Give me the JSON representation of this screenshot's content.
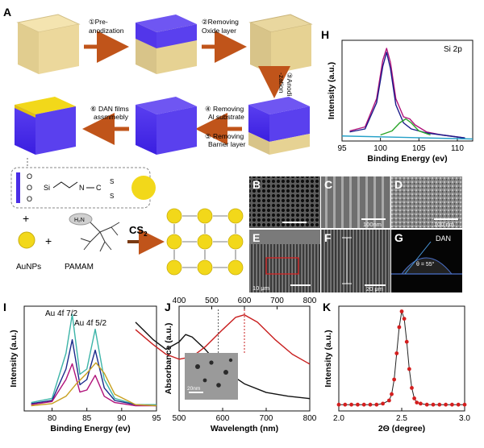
{
  "panel_labels": {
    "A": "A",
    "H": "H",
    "B": "B",
    "C": "C",
    "D": "D",
    "E": "E",
    "F": "F",
    "G": "G",
    "I": "I",
    "J": "J",
    "K": "K"
  },
  "schematic": {
    "steps": [
      "①Pre-",
      "anodization",
      "②Removing",
      "Oxide layer",
      "③Anodi",
      "-zation",
      "④ Removing",
      "Al substrate",
      "⑤ Removing",
      "Barrier layer",
      "⑥ DAN films",
      "assmmebly"
    ],
    "molecule_atoms": [
      "O",
      "O",
      "O",
      "Si",
      "N",
      "C",
      "S",
      "S"
    ],
    "plus": "+",
    "reagent_label_1": "AuNPs",
    "reagent_label_2": "PAMAM",
    "amine_label": "H₂N",
    "cs2_label": "CS",
    "cs2_sub": "2"
  },
  "micrographs": {
    "C_scale": "100nm",
    "D_scale": "100 nm",
    "E_scale": "10 μm",
    "F_scale": "20 μm",
    "G_title": "DAN",
    "G_angle": "θ = 55°",
    "J_inset_scale": "20nm"
  },
  "chart_data": [
    {
      "id": "H",
      "type": "line",
      "annotation": "Si 2p",
      "xlabel": "Binding Energy (ev)",
      "ylabel": "Intensity (a.u.)",
      "xlim": [
        95,
        112
      ],
      "x_ticks": [
        "95",
        "100",
        "105",
        "110"
      ],
      "series": [
        {
          "color": "#b0127a",
          "x": [
            96,
            98,
            99.5,
            100.3,
            100.8,
            101.3,
            102,
            103,
            103.8,
            104.5,
            106,
            108,
            111
          ],
          "y": [
            0.1,
            0.14,
            0.42,
            0.8,
            0.92,
            0.78,
            0.42,
            0.24,
            0.22,
            0.16,
            0.09,
            0.06,
            0.03
          ]
        },
        {
          "color": "#1a1a8a",
          "x": [
            96,
            98,
            99.5,
            100.3,
            100.8,
            101.3,
            102,
            103,
            104,
            106,
            111
          ],
          "y": [
            0.09,
            0.12,
            0.38,
            0.74,
            0.88,
            0.72,
            0.36,
            0.18,
            0.12,
            0.08,
            0.03
          ]
        },
        {
          "color": "#2aa52a",
          "x": [
            100,
            101.5,
            102.5,
            103.3,
            104,
            105,
            106.5
          ],
          "y": [
            0.06,
            0.1,
            0.18,
            0.22,
            0.18,
            0.1,
            0.06
          ]
        },
        {
          "color": "#24a0c8",
          "x": [
            95,
            112
          ],
          "y": [
            0.05,
            0.02
          ]
        }
      ]
    },
    {
      "id": "I",
      "type": "line",
      "xlabel": "Binding Energy (ev)",
      "ylabel": "Intensity (a.u.)",
      "xlim": [
        76,
        95
      ],
      "x_ticks": [
        "80",
        "85",
        "90",
        "95"
      ],
      "annotations": [
        "Au 4f 7/2",
        "Au 4f 5/2"
      ],
      "series": [
        {
          "color": "#3cb4a8",
          "x": [
            77,
            80,
            82,
            82.9,
            84,
            85,
            86.2,
            87.5,
            89,
            92,
            95
          ],
          "y": [
            0.08,
            0.12,
            0.55,
            0.92,
            0.35,
            0.4,
            0.78,
            0.3,
            0.12,
            0.06,
            0.06
          ]
        },
        {
          "color": "#1a2a8a",
          "x": [
            77,
            80,
            82,
            82.9,
            84,
            85,
            86.2,
            87.5,
            89,
            92,
            95
          ],
          "y": [
            0.07,
            0.1,
            0.4,
            0.68,
            0.25,
            0.3,
            0.58,
            0.22,
            0.1,
            0.06,
            0.05
          ]
        },
        {
          "color": "#b0127a",
          "x": [
            77,
            80,
            82,
            82.9,
            84,
            85,
            86.2,
            87.5,
            89,
            92,
            95
          ],
          "y": [
            0.06,
            0.09,
            0.3,
            0.45,
            0.18,
            0.2,
            0.34,
            0.14,
            0.08,
            0.05,
            0.05
          ]
        },
        {
          "color": "#c8a020",
          "x": [
            77,
            80,
            82,
            83.5,
            85,
            86.3,
            87.5,
            89,
            92,
            95
          ],
          "y": [
            0.05,
            0.07,
            0.14,
            0.26,
            0.36,
            0.46,
            0.36,
            0.16,
            0.06,
            0.05
          ]
        }
      ]
    },
    {
      "id": "J",
      "type": "line",
      "xlabel": "Wavelength (nm)",
      "ylabel": "Absorbance (a.u.)",
      "xlim_bottom": [
        500,
        800
      ],
      "xlim_top": [
        400,
        800
      ],
      "x_ticks_bottom": [
        "500",
        "600",
        "700",
        "800"
      ],
      "x_ticks_top": [
        "400",
        "500",
        "600",
        "700",
        "800"
      ],
      "series": [
        {
          "color": "#111111",
          "x": [
            400,
            440,
            470,
            500,
            515,
            530,
            560,
            600,
            650,
            700,
            750,
            800
          ],
          "y": [
            0.72,
            0.58,
            0.5,
            0.56,
            0.62,
            0.6,
            0.5,
            0.34,
            0.22,
            0.15,
            0.12,
            0.1
          ]
        },
        {
          "color": "#c81e1e",
          "x": [
            400,
            440,
            470,
            500,
            530,
            560,
            600,
            630,
            650,
            680,
            720,
            760,
            800
          ],
          "y": [
            0.66,
            0.54,
            0.46,
            0.42,
            0.44,
            0.52,
            0.66,
            0.76,
            0.78,
            0.72,
            0.58,
            0.46,
            0.38
          ]
        }
      ]
    },
    {
      "id": "K",
      "type": "scatter",
      "xlabel": "2Θ (degree)",
      "ylabel": "Intensity (a.u.)",
      "xlim": [
        2.0,
        3.0
      ],
      "x_ticks": [
        "2.0",
        "2.5",
        "3.0"
      ],
      "series": [
        {
          "color": "#d41e1e",
          "x": [
            2.0,
            2.05,
            2.1,
            2.15,
            2.2,
            2.25,
            2.3,
            2.35,
            2.4,
            2.42,
            2.44,
            2.46,
            2.48,
            2.5,
            2.52,
            2.54,
            2.56,
            2.58,
            2.6,
            2.62,
            2.65,
            2.7,
            2.75,
            2.8,
            2.85,
            2.9,
            2.95,
            3.0
          ],
          "y": [
            0.06,
            0.06,
            0.06,
            0.06,
            0.06,
            0.06,
            0.06,
            0.07,
            0.1,
            0.16,
            0.3,
            0.55,
            0.8,
            0.95,
            0.88,
            0.66,
            0.4,
            0.22,
            0.12,
            0.08,
            0.07,
            0.06,
            0.06,
            0.06,
            0.06,
            0.06,
            0.06,
            0.06
          ]
        }
      ]
    }
  ]
}
